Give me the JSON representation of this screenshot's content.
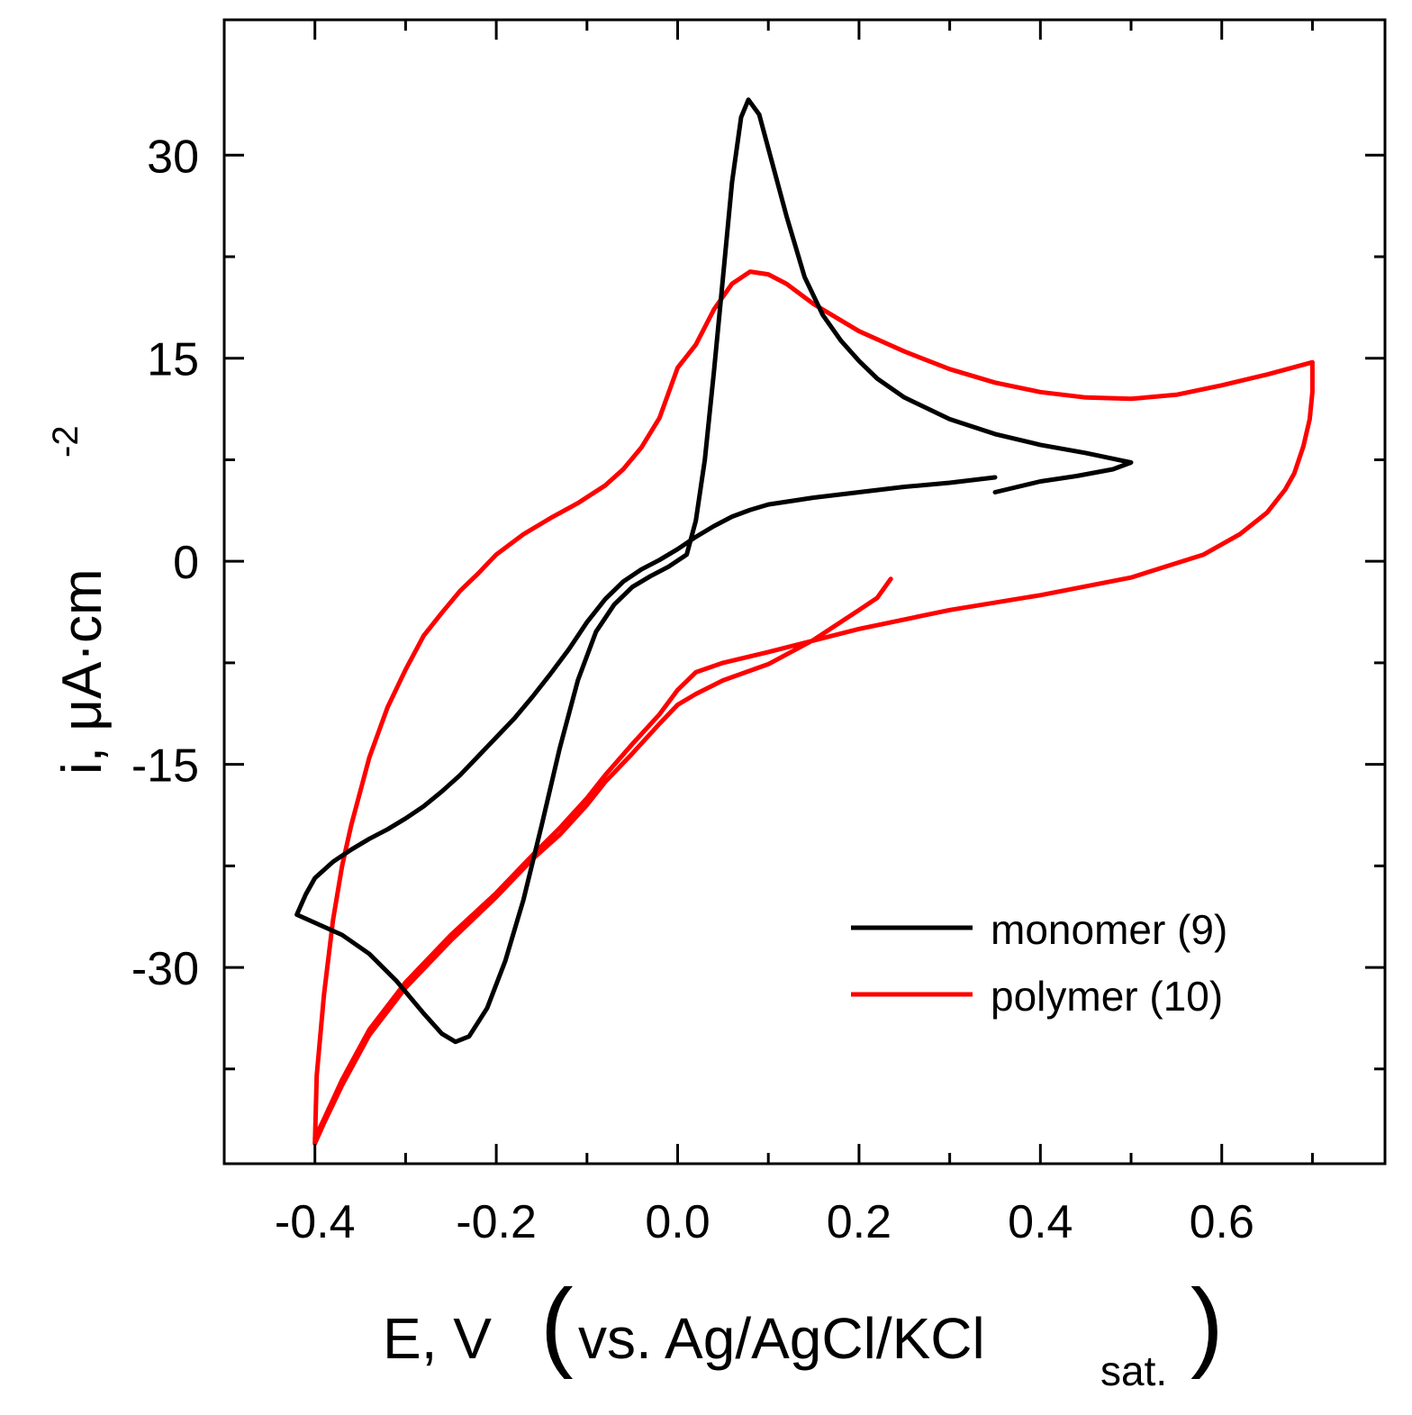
{
  "chart_data": {
    "type": "line",
    "title": "",
    "xlabel": {
      "main": "E, V",
      "paren_open": "(",
      "ref_text": "vs. Ag/AgCl/KCl",
      "ref_subscript": "sat.",
      "paren_close": ")"
    },
    "ylabel": {
      "main": "i, μA·cm",
      "superscript": "-2"
    },
    "xlim": [
      -0.5,
      0.78
    ],
    "ylim": [
      -44.5,
      40
    ],
    "x_ticks": [
      -0.4,
      -0.2,
      0.0,
      0.2,
      0.4,
      0.6
    ],
    "x_tick_labels": [
      "-0.4",
      "-0.2",
      "0.0",
      "0.2",
      "0.4",
      "0.6"
    ],
    "x_minor_ticks": [
      -0.3,
      -0.1,
      0.1,
      0.3,
      0.5,
      0.7
    ],
    "y_ticks": [
      -30,
      -15,
      0,
      15,
      30
    ],
    "y_tick_labels": [
      "-30",
      "-15",
      "0",
      "15",
      "30"
    ],
    "y_minor_ticks": [
      -37.5,
      -22.5,
      -7.5,
      7.5,
      22.5
    ],
    "grid": false,
    "legend_position": "bottom-right",
    "series": [
      {
        "name": "monomer (9)",
        "color": "#000000",
        "points": [
          [
            0.35,
            6.2
          ],
          [
            0.3,
            5.8
          ],
          [
            0.25,
            5.5
          ],
          [
            0.2,
            5.1
          ],
          [
            0.15,
            4.7
          ],
          [
            0.1,
            4.2
          ],
          [
            0.08,
            3.8
          ],
          [
            0.06,
            3.3
          ],
          [
            0.04,
            2.6
          ],
          [
            0.02,
            1.8
          ],
          [
            0.0,
            0.9
          ],
          [
            -0.02,
            0.1
          ],
          [
            -0.04,
            -0.6
          ],
          [
            -0.06,
            -1.5
          ],
          [
            -0.08,
            -2.8
          ],
          [
            -0.1,
            -4.5
          ],
          [
            -0.12,
            -6.5
          ],
          [
            -0.14,
            -8.3
          ],
          [
            -0.16,
            -10.0
          ],
          [
            -0.18,
            -11.6
          ],
          [
            -0.2,
            -13.0
          ],
          [
            -0.22,
            -14.4
          ],
          [
            -0.24,
            -15.8
          ],
          [
            -0.26,
            -17.0
          ],
          [
            -0.28,
            -18.1
          ],
          [
            -0.3,
            -19.0
          ],
          [
            -0.32,
            -19.8
          ],
          [
            -0.34,
            -20.5
          ],
          [
            -0.36,
            -21.3
          ],
          [
            -0.38,
            -22.2
          ],
          [
            -0.4,
            -23.4
          ],
          [
            -0.41,
            -24.6
          ],
          [
            -0.42,
            -26.1
          ],
          [
            -0.4,
            -26.7
          ],
          [
            -0.37,
            -27.6
          ],
          [
            -0.34,
            -29.0
          ],
          [
            -0.31,
            -31.0
          ],
          [
            -0.28,
            -33.4
          ],
          [
            -0.26,
            -34.9
          ],
          [
            -0.245,
            -35.5
          ],
          [
            -0.23,
            -35.1
          ],
          [
            -0.21,
            -33.0
          ],
          [
            -0.19,
            -29.5
          ],
          [
            -0.17,
            -25.0
          ],
          [
            -0.15,
            -19.5
          ],
          [
            -0.13,
            -13.8
          ],
          [
            -0.11,
            -8.8
          ],
          [
            -0.09,
            -5.2
          ],
          [
            -0.07,
            -3.2
          ],
          [
            -0.05,
            -1.9
          ],
          [
            -0.03,
            -1.1
          ],
          [
            -0.01,
            -0.4
          ],
          [
            0.01,
            0.5
          ],
          [
            0.02,
            3.0
          ],
          [
            0.03,
            7.5
          ],
          [
            0.04,
            14.0
          ],
          [
            0.05,
            21.0
          ],
          [
            0.06,
            28.0
          ],
          [
            0.07,
            32.8
          ],
          [
            0.078,
            34.1
          ],
          [
            0.09,
            33.0
          ],
          [
            0.1,
            30.5
          ],
          [
            0.12,
            25.5
          ],
          [
            0.14,
            21.0
          ],
          [
            0.16,
            18.2
          ],
          [
            0.18,
            16.3
          ],
          [
            0.2,
            14.8
          ],
          [
            0.22,
            13.5
          ],
          [
            0.25,
            12.1
          ],
          [
            0.3,
            10.5
          ],
          [
            0.35,
            9.4
          ],
          [
            0.4,
            8.6
          ],
          [
            0.45,
            8.0
          ],
          [
            0.5,
            7.3
          ],
          [
            0.48,
            6.8
          ],
          [
            0.44,
            6.3
          ],
          [
            0.4,
            5.9
          ],
          [
            0.35,
            5.1
          ]
        ]
      },
      {
        "name": "polymer (10)",
        "color": "#ff0000",
        "points": [
          [
            0.235,
            -1.3
          ],
          [
            0.22,
            -2.7
          ],
          [
            0.2,
            -3.6
          ],
          [
            0.15,
            -5.8
          ],
          [
            0.1,
            -7.6
          ],
          [
            0.05,
            -8.8
          ],
          [
            0.02,
            -9.8
          ],
          [
            0.0,
            -10.6
          ],
          [
            -0.02,
            -12.0
          ],
          [
            -0.05,
            -14.2
          ],
          [
            -0.08,
            -16.3
          ],
          [
            -0.1,
            -18.0
          ],
          [
            -0.13,
            -20.2
          ],
          [
            -0.16,
            -22.0
          ],
          [
            -0.2,
            -24.8
          ],
          [
            -0.25,
            -28.0
          ],
          [
            -0.3,
            -31.5
          ],
          [
            -0.34,
            -35.0
          ],
          [
            -0.37,
            -38.7
          ],
          [
            -0.39,
            -41.5
          ],
          [
            -0.4,
            -43.0
          ],
          [
            -0.398,
            -38.0
          ],
          [
            -0.39,
            -32.0
          ],
          [
            -0.38,
            -26.5
          ],
          [
            -0.37,
            -22.5
          ],
          [
            -0.36,
            -19.5
          ],
          [
            -0.34,
            -14.5
          ],
          [
            -0.32,
            -10.8
          ],
          [
            -0.3,
            -8.0
          ],
          [
            -0.28,
            -5.5
          ],
          [
            -0.26,
            -3.8
          ],
          [
            -0.24,
            -2.2
          ],
          [
            -0.22,
            -0.9
          ],
          [
            -0.2,
            0.5
          ],
          [
            -0.17,
            2.0
          ],
          [
            -0.14,
            3.2
          ],
          [
            -0.11,
            4.3
          ],
          [
            -0.08,
            5.6
          ],
          [
            -0.06,
            6.8
          ],
          [
            -0.04,
            8.4
          ],
          [
            -0.02,
            10.6
          ],
          [
            0.0,
            14.3
          ],
          [
            0.02,
            16.0
          ],
          [
            0.04,
            18.6
          ],
          [
            0.06,
            20.5
          ],
          [
            0.08,
            21.4
          ],
          [
            0.1,
            21.2
          ],
          [
            0.12,
            20.5
          ],
          [
            0.15,
            19.0
          ],
          [
            0.2,
            17.0
          ],
          [
            0.25,
            15.5
          ],
          [
            0.3,
            14.2
          ],
          [
            0.35,
            13.2
          ],
          [
            0.4,
            12.5
          ],
          [
            0.45,
            12.1
          ],
          [
            0.5,
            12.0
          ],
          [
            0.55,
            12.3
          ],
          [
            0.6,
            13.0
          ],
          [
            0.65,
            13.8
          ],
          [
            0.7,
            14.7
          ],
          [
            0.7,
            12.5
          ],
          [
            0.697,
            10.5
          ],
          [
            0.69,
            8.5
          ],
          [
            0.68,
            6.5
          ],
          [
            0.67,
            5.3
          ],
          [
            0.65,
            3.6
          ],
          [
            0.62,
            2.0
          ],
          [
            0.58,
            0.5
          ],
          [
            0.5,
            -1.2
          ],
          [
            0.4,
            -2.5
          ],
          [
            0.3,
            -3.6
          ],
          [
            0.2,
            -5.0
          ],
          [
            0.1,
            -6.7
          ],
          [
            0.05,
            -7.5
          ],
          [
            0.02,
            -8.2
          ],
          [
            0.0,
            -9.5
          ],
          [
            -0.02,
            -11.3
          ],
          [
            -0.05,
            -13.5
          ],
          [
            -0.08,
            -15.8
          ],
          [
            -0.1,
            -17.5
          ],
          [
            -0.13,
            -19.7
          ],
          [
            -0.16,
            -21.7
          ],
          [
            -0.2,
            -24.5
          ],
          [
            -0.25,
            -27.6
          ],
          [
            -0.3,
            -31.1
          ],
          [
            -0.34,
            -34.6
          ],
          [
            -0.37,
            -38.3
          ],
          [
            -0.39,
            -41.2
          ],
          [
            -0.4,
            -42.6
          ]
        ]
      }
    ]
  }
}
